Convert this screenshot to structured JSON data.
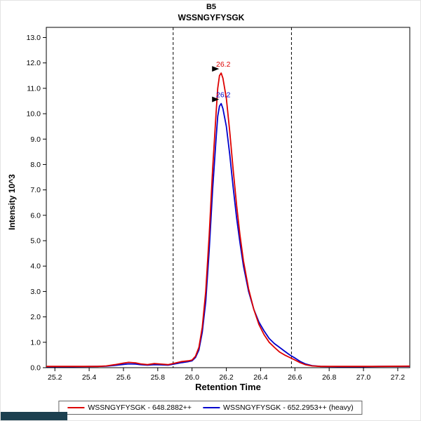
{
  "window": {
    "background": "#ffffff",
    "status_fragment_color": "#1c4050"
  },
  "chart_data": {
    "type": "line",
    "title": "B5",
    "subtitle": "WSSNGYFYSGK",
    "xlabel": "Retention Time",
    "ylabel": "Intensity 10^3",
    "x_range": [
      25.15,
      27.27
    ],
    "y_range": [
      0,
      13.4
    ],
    "x_tick_values": [
      25.2,
      25.4,
      25.6,
      25.8,
      26.0,
      26.2,
      26.4,
      26.6,
      26.8,
      27.0,
      27.2
    ],
    "x_tick_labels": [
      "25.2",
      "25.4",
      "25.6",
      "25.8",
      "26.0",
      "26.2",
      "26.4",
      "26.6",
      "26.8",
      "27.0",
      "27.2"
    ],
    "y_tick_values": [
      0,
      1,
      2,
      3,
      4,
      5,
      6,
      7,
      8,
      9,
      10,
      11,
      12,
      13
    ],
    "y_tick_labels": [
      "0.0",
      "1.0",
      "2.0",
      "3.0",
      "4.0",
      "5.0",
      "6.0",
      "7.0",
      "8.0",
      "9.0",
      "10.0",
      "11.0",
      "12.0",
      "13.0"
    ],
    "grid": false,
    "legend_position": "bottom",
    "peak_boundaries": [
      25.89,
      26.58
    ],
    "boundary_color": "#000000",
    "series": [
      {
        "name": "WSSNGYFYSGK - 652.2953++ (heavy)",
        "color": "#0000cc",
        "points": [
          [
            25.15,
            0.04
          ],
          [
            25.3,
            0.04
          ],
          [
            25.45,
            0.05
          ],
          [
            25.5,
            0.06
          ],
          [
            25.55,
            0.09
          ],
          [
            25.6,
            0.13
          ],
          [
            25.63,
            0.15
          ],
          [
            25.67,
            0.14
          ],
          [
            25.7,
            0.12
          ],
          [
            25.74,
            0.1
          ],
          [
            25.78,
            0.12
          ],
          [
            25.82,
            0.11
          ],
          [
            25.86,
            0.1
          ],
          [
            25.9,
            0.15
          ],
          [
            25.94,
            0.2
          ],
          [
            25.98,
            0.24
          ],
          [
            26.0,
            0.27
          ],
          [
            26.02,
            0.4
          ],
          [
            26.04,
            0.7
          ],
          [
            26.06,
            1.4
          ],
          [
            26.08,
            2.6
          ],
          [
            26.1,
            4.6
          ],
          [
            26.12,
            7.0
          ],
          [
            26.14,
            9.0
          ],
          [
            26.15,
            9.9
          ],
          [
            26.16,
            10.3
          ],
          [
            26.17,
            10.4
          ],
          [
            26.18,
            10.2
          ],
          [
            26.2,
            9.5
          ],
          [
            26.22,
            8.4
          ],
          [
            26.24,
            7.1
          ],
          [
            26.26,
            5.9
          ],
          [
            26.28,
            4.9
          ],
          [
            26.3,
            4.0
          ],
          [
            26.33,
            3.0
          ],
          [
            26.36,
            2.3
          ],
          [
            26.39,
            1.8
          ],
          [
            26.42,
            1.45
          ],
          [
            26.45,
            1.15
          ],
          [
            26.48,
            0.95
          ],
          [
            26.51,
            0.8
          ],
          [
            26.54,
            0.65
          ],
          [
            26.57,
            0.5
          ],
          [
            26.6,
            0.38
          ],
          [
            26.63,
            0.25
          ],
          [
            26.66,
            0.15
          ],
          [
            26.7,
            0.08
          ],
          [
            26.75,
            0.05
          ],
          [
            26.85,
            0.04
          ],
          [
            27.0,
            0.04
          ],
          [
            27.1,
            0.05
          ],
          [
            27.27,
            0.05
          ]
        ]
      },
      {
        "name": "WSSNGYFYSGK - 648.2882++",
        "color": "#dd0000",
        "points": [
          [
            25.15,
            0.05
          ],
          [
            25.3,
            0.05
          ],
          [
            25.45,
            0.05
          ],
          [
            25.5,
            0.07
          ],
          [
            25.55,
            0.12
          ],
          [
            25.6,
            0.18
          ],
          [
            25.63,
            0.21
          ],
          [
            25.67,
            0.19
          ],
          [
            25.7,
            0.15
          ],
          [
            25.74,
            0.12
          ],
          [
            25.78,
            0.16
          ],
          [
            25.82,
            0.14
          ],
          [
            25.86,
            0.12
          ],
          [
            25.9,
            0.18
          ],
          [
            25.94,
            0.24
          ],
          [
            25.98,
            0.27
          ],
          [
            26.0,
            0.3
          ],
          [
            26.02,
            0.45
          ],
          [
            26.04,
            0.8
          ],
          [
            26.06,
            1.6
          ],
          [
            26.08,
            3.0
          ],
          [
            26.1,
            5.2
          ],
          [
            26.12,
            7.8
          ],
          [
            26.14,
            10.0
          ],
          [
            26.15,
            11.0
          ],
          [
            26.16,
            11.5
          ],
          [
            26.17,
            11.6
          ],
          [
            26.18,
            11.4
          ],
          [
            26.2,
            10.6
          ],
          [
            26.22,
            9.3
          ],
          [
            26.24,
            7.8
          ],
          [
            26.26,
            6.4
          ],
          [
            26.28,
            5.2
          ],
          [
            26.3,
            4.2
          ],
          [
            26.33,
            3.1
          ],
          [
            26.36,
            2.3
          ],
          [
            26.39,
            1.7
          ],
          [
            26.42,
            1.3
          ],
          [
            26.45,
            1.0
          ],
          [
            26.48,
            0.8
          ],
          [
            26.51,
            0.62
          ],
          [
            26.54,
            0.5
          ],
          [
            26.57,
            0.4
          ],
          [
            26.6,
            0.3
          ],
          [
            26.63,
            0.2
          ],
          [
            26.66,
            0.12
          ],
          [
            26.7,
            0.07
          ],
          [
            26.75,
            0.05
          ],
          [
            26.85,
            0.05
          ],
          [
            27.0,
            0.05
          ],
          [
            27.1,
            0.05
          ],
          [
            27.27,
            0.06
          ]
        ]
      }
    ],
    "annotations": [
      {
        "text": "26.2",
        "color": "#dd0000",
        "x": 26.17,
        "y": 11.6
      },
      {
        "text": "26.2",
        "color": "#0000cc",
        "x": 26.17,
        "y": 10.4
      }
    ],
    "legend": [
      {
        "label": "WSSNGYFYSGK - 648.2882++",
        "color": "#dd0000"
      },
      {
        "label": "WSSNGYFYSGK - 652.2953++ (heavy)",
        "color": "#0000cc"
      }
    ]
  }
}
